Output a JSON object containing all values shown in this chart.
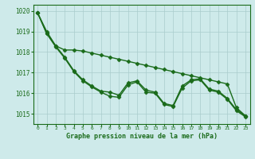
{
  "title": "Graphe pression niveau de la mer (hPa)",
  "xlabel_hours": [
    0,
    1,
    2,
    3,
    4,
    5,
    6,
    7,
    8,
    9,
    10,
    11,
    12,
    13,
    14,
    15,
    16,
    17,
    18,
    19,
    20,
    21,
    22,
    23
  ],
  "ylim": [
    1014.5,
    1020.3
  ],
  "yticks": [
    1015,
    1016,
    1017,
    1018,
    1019,
    1020
  ],
  "background_color": "#ceeaea",
  "grid_color": "#aacccc",
  "line_color": "#1a6b1a",
  "series": [
    [
      1019.9,
      1019.0,
      1018.3,
      1018.1,
      1018.1,
      1018.05,
      1017.95,
      1017.85,
      1017.75,
      1017.65,
      1017.55,
      1017.45,
      1017.35,
      1017.25,
      1017.15,
      1017.05,
      1016.95,
      1016.85,
      1016.75,
      1016.65,
      1016.55,
      1016.45,
      1015.3,
      1014.9
    ],
    [
      1019.9,
      1018.9,
      1018.3,
      1017.75,
      1017.1,
      1016.65,
      1016.35,
      1016.1,
      1016.05,
      1015.9,
      1016.5,
      1016.6,
      1016.15,
      1016.05,
      1015.5,
      1015.4,
      1016.35,
      1016.65,
      1016.7,
      1016.2,
      1016.1,
      1015.75,
      1015.2,
      1014.9
    ],
    [
      1019.9,
      1018.9,
      1018.25,
      1017.7,
      1017.05,
      1016.6,
      1016.3,
      1016.05,
      1015.85,
      1015.8,
      1016.4,
      1016.55,
      1016.05,
      1016.0,
      1015.45,
      1015.35,
      1016.25,
      1016.6,
      1016.65,
      1016.15,
      1016.05,
      1015.7,
      1015.15,
      1014.85
    ]
  ],
  "marker": "D",
  "marker_size": 2.5,
  "linewidth": 1.0
}
